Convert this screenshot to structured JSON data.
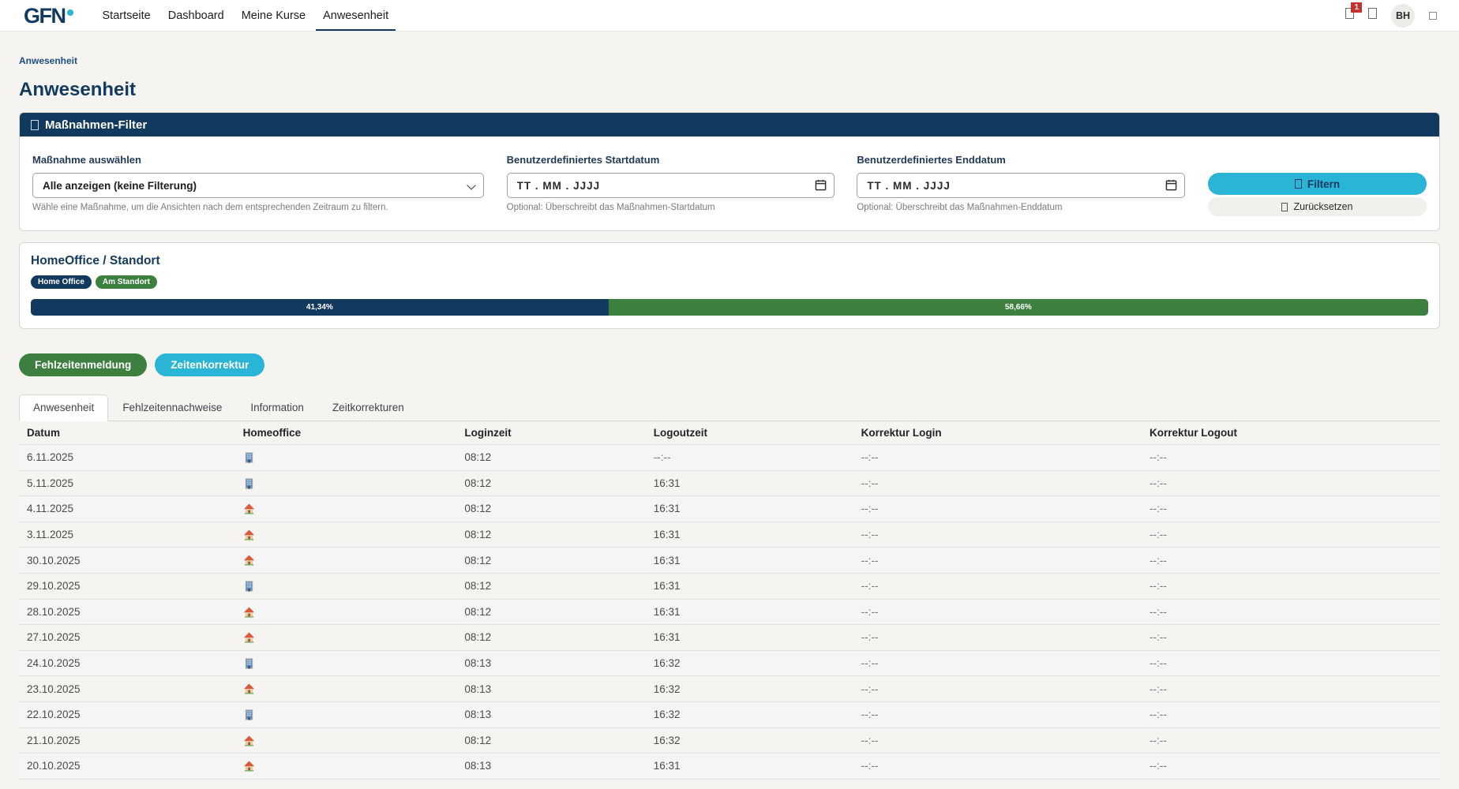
{
  "colors": {
    "navy": "#12395e",
    "cyan": "#2ab5d6",
    "green": "#3d7f3f",
    "red": "#c9302c",
    "pagebg": "#f6f4f1"
  },
  "brand": {
    "logo_text": "GFN"
  },
  "nav": {
    "items": [
      {
        "label": "Startseite",
        "active": false
      },
      {
        "label": "Dashboard",
        "active": false
      },
      {
        "label": "Meine Kurse",
        "active": false
      },
      {
        "label": "Anwesenheit",
        "active": true
      }
    ]
  },
  "topbar": {
    "notification_badge": "1",
    "avatar_initials": "BH"
  },
  "breadcrumb": {
    "label": "Anwesenheit"
  },
  "page": {
    "title": "Anwesenheit"
  },
  "filter_panel": {
    "title": "Maßnahmen-Filter",
    "measure": {
      "label": "Maßnahme auswählen",
      "value": "Alle anzeigen (keine Filterung)",
      "helper": "Wähle eine Maßnahme, um die Ansichten nach dem entsprechenden Zeitraum zu filtern."
    },
    "start_date": {
      "label": "Benutzerdefiniertes Startdatum",
      "placeholder": "TT . MM . JJJJ",
      "helper": "Optional: Überschreibt das Maßnahmen-Startdatum"
    },
    "end_date": {
      "label": "Benutzerdefiniertes Enddatum",
      "placeholder": "TT . MM . JJJJ",
      "helper": "Optional: Überschreibt das Maßnahmen-Enddatum"
    },
    "filter_button": "Filtern",
    "reset_button": "Zurücksetzen"
  },
  "homeoffice_card": {
    "title": "HomeOffice / Standort",
    "badges": [
      {
        "label": "Home Office",
        "color": "#12395e"
      },
      {
        "label": "Am Standort",
        "color": "#3d7f3f"
      }
    ],
    "bar": {
      "segments": [
        {
          "label": "41,34%",
          "value": 41.34,
          "color": "#12395e"
        },
        {
          "label": "58,66%",
          "value": 58.66,
          "color": "#3d7f3f"
        }
      ]
    }
  },
  "actions": [
    {
      "label": "Fehlzeitenmeldung",
      "color": "#3d7f3f"
    },
    {
      "label": "Zeitenkorrektur",
      "color": "#2ab5d6"
    }
  ],
  "tabs": [
    {
      "label": "Anwesenheit",
      "active": true
    },
    {
      "label": "Fehlzeitennachweise",
      "active": false
    },
    {
      "label": "Information",
      "active": false
    },
    {
      "label": "Zeitkorrekturen",
      "active": false
    }
  ],
  "table": {
    "headers": [
      "Datum",
      "Homeoffice",
      "Loginzeit",
      "Logoutzeit",
      "Korrektur Login",
      "Korrektur Logout"
    ],
    "rows": [
      {
        "datum": "6.11.2025",
        "homeoffice": "building",
        "loginzeit": "08:12",
        "logoutzeit": "--:--",
        "korrektur_login": "--:--",
        "korrektur_logout": "--:--"
      },
      {
        "datum": "5.11.2025",
        "homeoffice": "building",
        "loginzeit": "08:12",
        "logoutzeit": "16:31",
        "korrektur_login": "--:--",
        "korrektur_logout": "--:--"
      },
      {
        "datum": "4.11.2025",
        "homeoffice": "house",
        "loginzeit": "08:12",
        "logoutzeit": "16:31",
        "korrektur_login": "--:--",
        "korrektur_logout": "--:--"
      },
      {
        "datum": "3.11.2025",
        "homeoffice": "house",
        "loginzeit": "08:12",
        "logoutzeit": "16:31",
        "korrektur_login": "--:--",
        "korrektur_logout": "--:--"
      },
      {
        "datum": "30.10.2025",
        "homeoffice": "house",
        "loginzeit": "08:12",
        "logoutzeit": "16:31",
        "korrektur_login": "--:--",
        "korrektur_logout": "--:--"
      },
      {
        "datum": "29.10.2025",
        "homeoffice": "building",
        "loginzeit": "08:12",
        "logoutzeit": "16:31",
        "korrektur_login": "--:--",
        "korrektur_logout": "--:--"
      },
      {
        "datum": "28.10.2025",
        "homeoffice": "house",
        "loginzeit": "08:12",
        "logoutzeit": "16:31",
        "korrektur_login": "--:--",
        "korrektur_logout": "--:--"
      },
      {
        "datum": "27.10.2025",
        "homeoffice": "house",
        "loginzeit": "08:12",
        "logoutzeit": "16:31",
        "korrektur_login": "--:--",
        "korrektur_logout": "--:--"
      },
      {
        "datum": "24.10.2025",
        "homeoffice": "building",
        "loginzeit": "08:13",
        "logoutzeit": "16:32",
        "korrektur_login": "--:--",
        "korrektur_logout": "--:--"
      },
      {
        "datum": "23.10.2025",
        "homeoffice": "house",
        "loginzeit": "08:13",
        "logoutzeit": "16:32",
        "korrektur_login": "--:--",
        "korrektur_logout": "--:--"
      },
      {
        "datum": "22.10.2025",
        "homeoffice": "building",
        "loginzeit": "08:13",
        "logoutzeit": "16:32",
        "korrektur_login": "--:--",
        "korrektur_logout": "--:--"
      },
      {
        "datum": "21.10.2025",
        "homeoffice": "house",
        "loginzeit": "08:12",
        "logoutzeit": "16:32",
        "korrektur_login": "--:--",
        "korrektur_logout": "--:--"
      },
      {
        "datum": "20.10.2025",
        "homeoffice": "house",
        "loginzeit": "08:13",
        "logoutzeit": "16:31",
        "korrektur_login": "--:--",
        "korrektur_logout": "--:--"
      }
    ]
  }
}
